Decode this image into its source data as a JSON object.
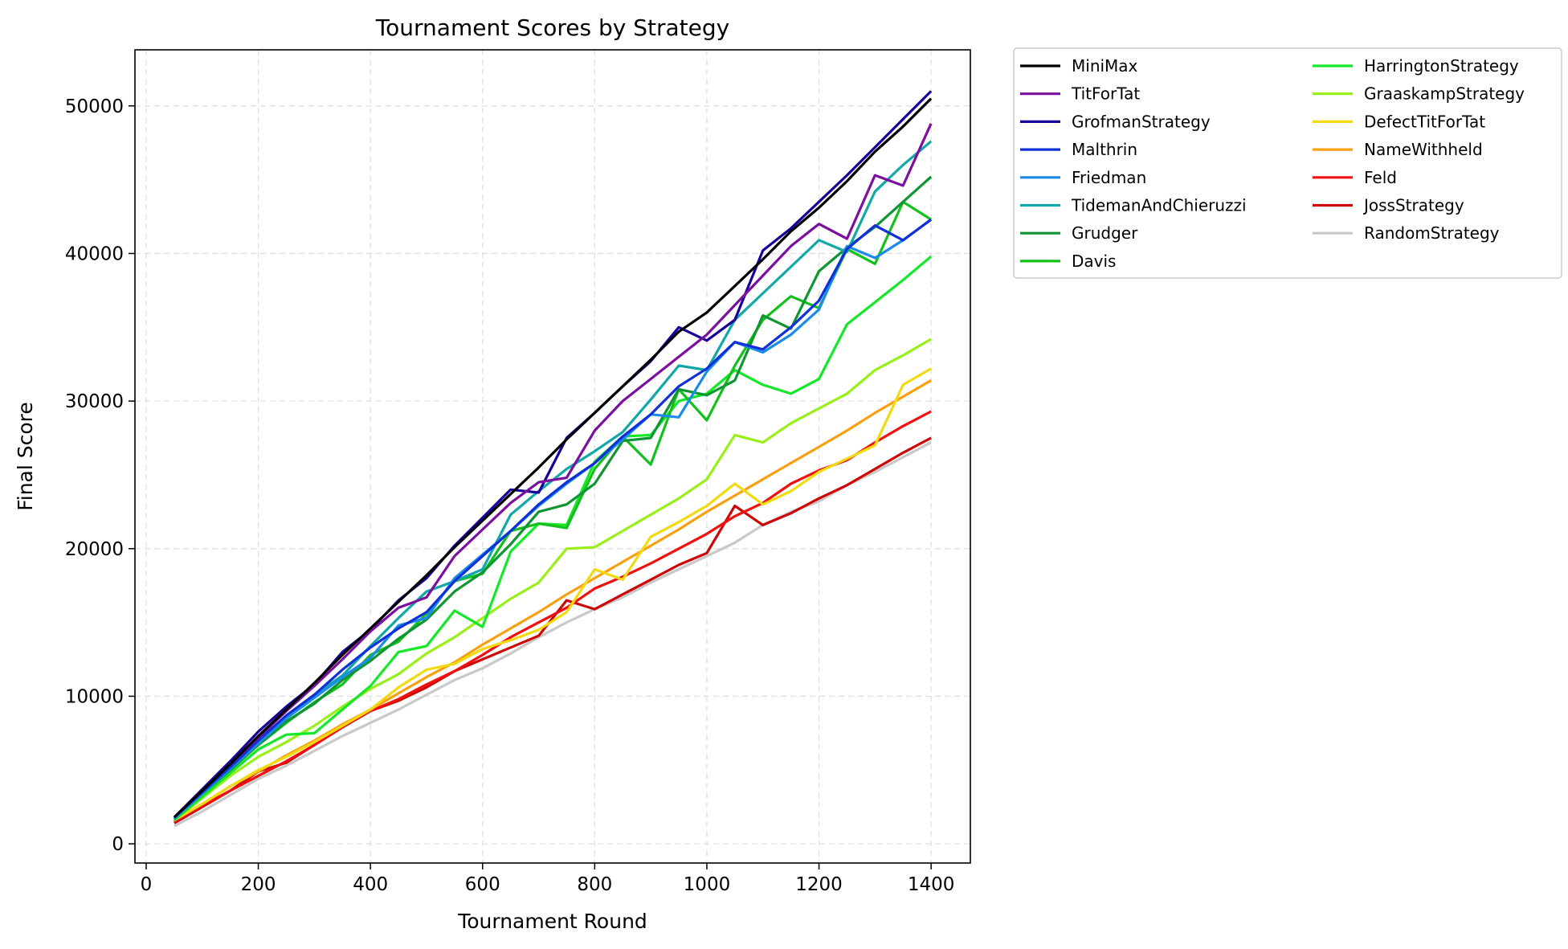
{
  "chart_data": {
    "type": "line",
    "title": "Tournament Scores by Strategy",
    "xlabel": "Tournament Round",
    "ylabel": "Final Score",
    "xlim": [
      -20,
      1470
    ],
    "ylim": [
      -1300,
      53800
    ],
    "xticks": [
      0,
      200,
      400,
      600,
      800,
      1000,
      1200,
      1400
    ],
    "yticks": [
      0,
      10000,
      20000,
      30000,
      40000,
      50000
    ],
    "grid": true,
    "legend_position": "outside-top-right",
    "legend_columns": 2,
    "x": [
      50,
      100,
      150,
      200,
      250,
      300,
      350,
      400,
      450,
      500,
      550,
      600,
      650,
      700,
      750,
      800,
      850,
      900,
      950,
      1000,
      1050,
      1100,
      1150,
      1200,
      1250,
      1300,
      1350,
      1400
    ],
    "series": [
      {
        "name": "MiniMax",
        "color": "#000000",
        "values": [
          1800,
          3600,
          5400,
          7300,
          9100,
          10900,
          12800,
          14600,
          16400,
          18200,
          20100,
          21900,
          23700,
          25500,
          27400,
          29200,
          31000,
          32800,
          34700,
          36000,
          37800,
          39600,
          41500,
          43100,
          44900,
          46900,
          48600,
          50500
        ]
      },
      {
        "name": "TitForTat",
        "color": "#7b0f9e",
        "values": [
          1800,
          3600,
          5400,
          7200,
          9000,
          10700,
          12500,
          14400,
          16000,
          16700,
          19500,
          21300,
          23100,
          24500,
          24800,
          28000,
          30000,
          31500,
          33000,
          34500,
          36500,
          38500,
          40500,
          42000,
          41000,
          45300,
          44600,
          48800
        ]
      },
      {
        "name": "GrofmanStrategy",
        "color": "#1a0099",
        "values": [
          1800,
          3700,
          5600,
          7600,
          9300,
          10800,
          13000,
          14500,
          16500,
          18000,
          20200,
          22100,
          24000,
          23800,
          27500,
          29200,
          31000,
          32700,
          35000,
          34100,
          35500,
          40200,
          41700,
          43500,
          45300,
          47200,
          49100,
          51000
        ]
      },
      {
        "name": "Malthrin",
        "color": "#1030d8",
        "values": [
          1800,
          3500,
          5200,
          7000,
          8700,
          10100,
          11800,
          13300,
          14600,
          15700,
          17800,
          19500,
          21200,
          23000,
          24500,
          25800,
          27600,
          29100,
          31000,
          32200,
          34000,
          33500,
          35000,
          36800,
          40300,
          41900,
          40900,
          42300
        ]
      },
      {
        "name": "Friedman",
        "color": "#1a8ce8",
        "values": [
          1700,
          3400,
          5100,
          6800,
          8500,
          9900,
          11300,
          12600,
          14800,
          15300,
          18000,
          19600,
          21200,
          22900,
          24400,
          25800,
          27400,
          29100,
          28900,
          32000,
          34000,
          33300,
          34500,
          36200,
          40500,
          39700,
          40900,
          42300
        ]
      },
      {
        "name": "TidemanAndChieruzzi",
        "color": "#12a8a8",
        "values": [
          1800,
          3500,
          5300,
          7100,
          8600,
          10100,
          11400,
          13400,
          15300,
          17100,
          17800,
          18600,
          22300,
          23900,
          25400,
          26600,
          27900,
          30100,
          32400,
          32100,
          35500,
          37300,
          39100,
          40900,
          40100,
          44200,
          46000,
          47600
        ]
      },
      {
        "name": "Grudger",
        "color": "#0f9632",
        "values": [
          1700,
          3400,
          5000,
          6700,
          8300,
          9500,
          11100,
          12400,
          13900,
          15200,
          17100,
          18400,
          20300,
          22500,
          23000,
          24400,
          27300,
          27500,
          30800,
          30400,
          31400,
          35800,
          34900,
          38800,
          40400,
          41800,
          43500,
          45200
        ]
      },
      {
        "name": "Davis",
        "color": "#14c01c",
        "values": [
          1700,
          3400,
          5100,
          6700,
          8200,
          9600,
          10800,
          12800,
          13700,
          15600,
          17800,
          18300,
          21200,
          21700,
          21400,
          25400,
          27600,
          25700,
          30800,
          28700,
          32400,
          35500,
          37100,
          36300,
          40300,
          39300,
          43500,
          42300
        ]
      },
      {
        "name": "HarringtonStrategy",
        "color": "#14e828",
        "values": [
          1600,
          3200,
          4800,
          6400,
          7400,
          7500,
          9100,
          10700,
          13000,
          13400,
          15800,
          14700,
          19800,
          21700,
          21600,
          25900,
          27600,
          27700,
          30000,
          30500,
          32100,
          31100,
          30500,
          31500,
          35200,
          36700,
          38200,
          39800
        ]
      },
      {
        "name": "GraaskampStrategy",
        "color": "#98f018",
        "values": [
          1600,
          3100,
          4600,
          5900,
          6900,
          8000,
          9300,
          10500,
          11500,
          12900,
          14000,
          15300,
          16600,
          17700,
          20000,
          20100,
          21200,
          22300,
          23400,
          24700,
          27700,
          27200,
          28500,
          29500,
          30500,
          32100,
          33100,
          34200
        ]
      },
      {
        "name": "DefectTitForTat",
        "color": "#f2da10",
        "values": [
          1600,
          2700,
          3900,
          5000,
          5900,
          6900,
          8000,
          9100,
          10600,
          11800,
          12200,
          13200,
          13800,
          14500,
          15700,
          18600,
          17900,
          20800,
          21800,
          22900,
          24400,
          23000,
          23900,
          25200,
          26100,
          27000,
          31100,
          32200
        ]
      },
      {
        "name": "NameWithheld",
        "color": "#f8a010",
        "values": [
          1600,
          2700,
          3900,
          4900,
          6000,
          7000,
          8100,
          9100,
          10200,
          11300,
          12300,
          13500,
          14600,
          15700,
          16900,
          18000,
          19100,
          20200,
          21300,
          22500,
          23600,
          24700,
          25800,
          26900,
          28000,
          29200,
          30300,
          31400
        ]
      },
      {
        "name": "Feld",
        "color": "#f01010",
        "values": [
          1500,
          2600,
          3600,
          4600,
          5600,
          6700,
          7900,
          9000,
          9800,
          10800,
          11700,
          12800,
          14000,
          15000,
          16000,
          17300,
          18100,
          19000,
          20000,
          21000,
          22200,
          23100,
          24400,
          25300,
          26000,
          27200,
          28300,
          29300
        ]
      },
      {
        "name": "JossStrategy",
        "color": "#cc0808",
        "values": [
          1400,
          2500,
          3600,
          4900,
          5500,
          6700,
          7900,
          9000,
          9700,
          10600,
          11700,
          12500,
          13300,
          14100,
          16500,
          15900,
          16900,
          17900,
          18900,
          19700,
          22900,
          21600,
          22400,
          23400,
          24300,
          25400,
          26500,
          27500
        ]
      },
      {
        "name": "RandomStrategy",
        "color": "#c9c9c9",
        "values": [
          1200,
          2200,
          3300,
          4400,
          5300,
          6300,
          7300,
          8200,
          9100,
          10100,
          11100,
          11900,
          12900,
          14000,
          15000,
          15900,
          16700,
          17700,
          18600,
          19500,
          20400,
          21600,
          22500,
          23200,
          24300,
          25200,
          26200,
          27200
        ]
      }
    ]
  }
}
